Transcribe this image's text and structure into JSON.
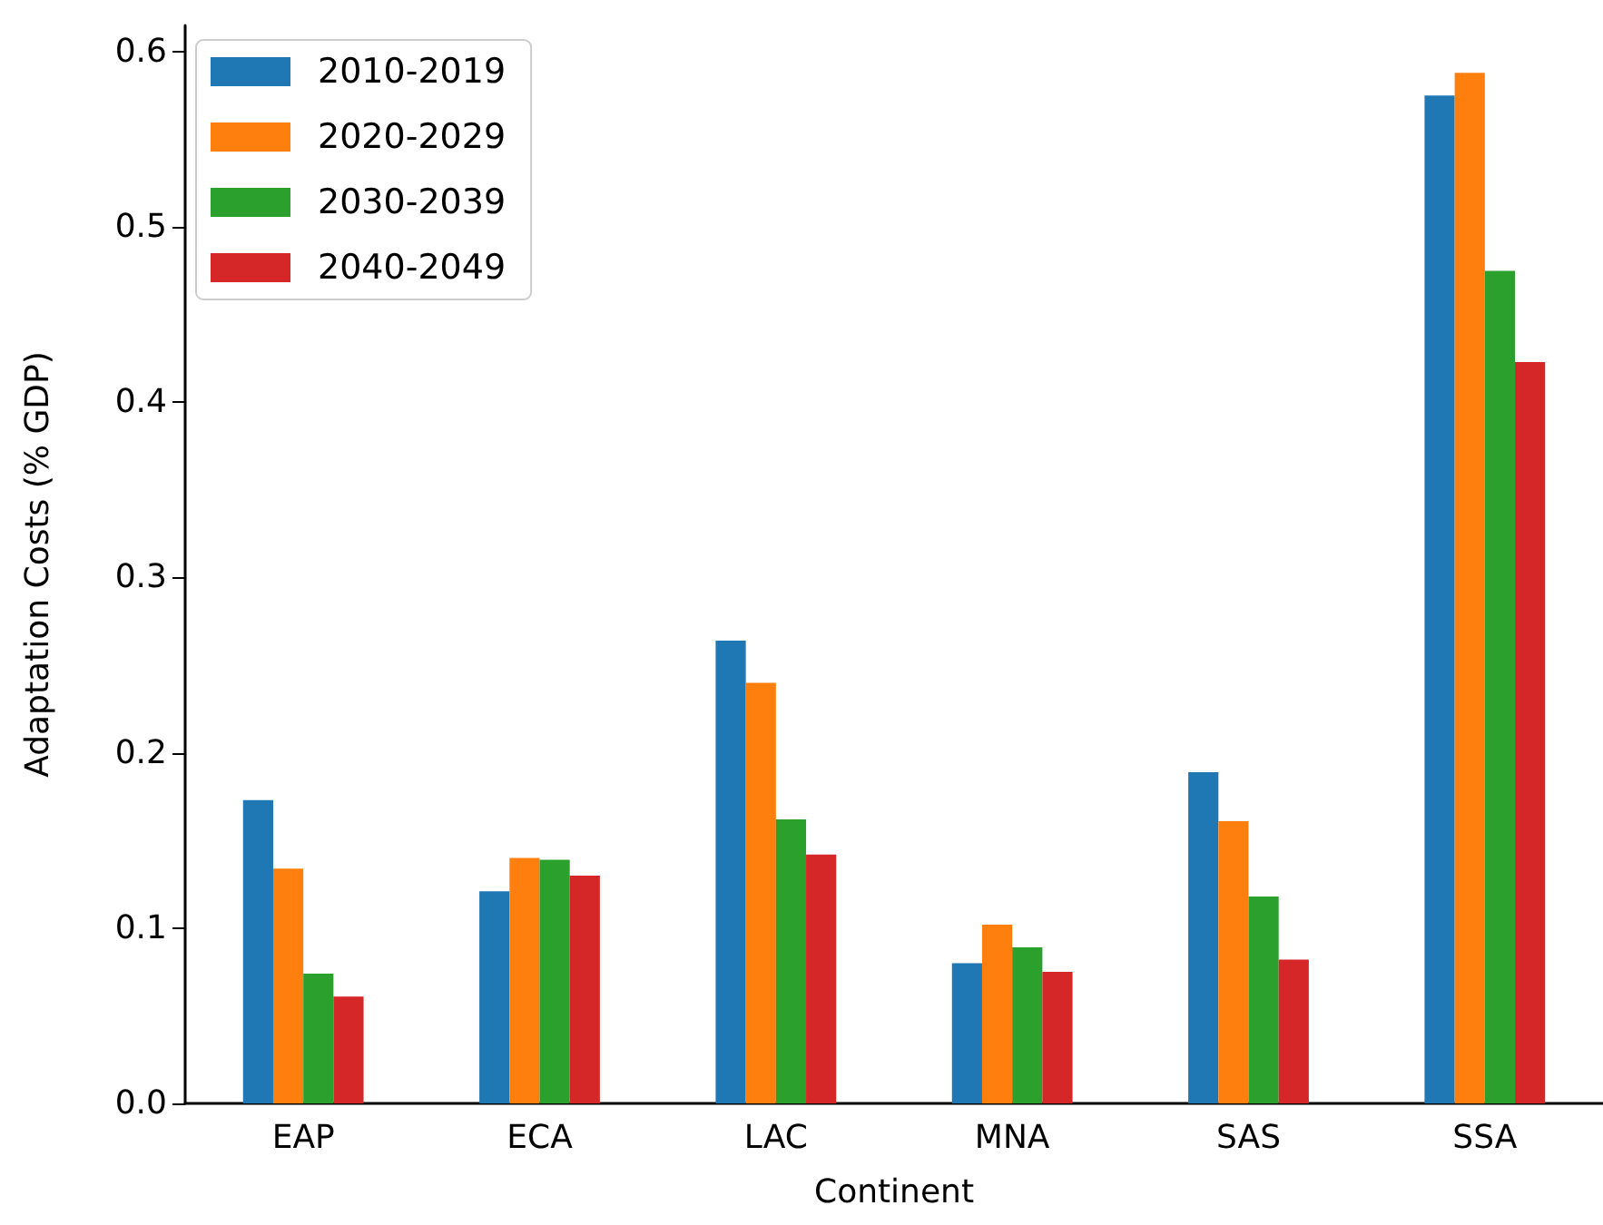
{
  "chart_data": {
    "type": "bar",
    "xlabel": "Continent",
    "ylabel": "Adaptation Costs (% GDP)",
    "categories": [
      "EAP",
      "ECA",
      "LAC",
      "MNA",
      "SAS",
      "SSA"
    ],
    "series": [
      {
        "name": "2010-2019",
        "color": "#1f77b4",
        "values": [
          0.173,
          0.121,
          0.264,
          0.08,
          0.189,
          0.575
        ]
      },
      {
        "name": "2020-2029",
        "color": "#ff7f0e",
        "values": [
          0.134,
          0.14,
          0.24,
          0.102,
          0.161,
          0.588
        ]
      },
      {
        "name": "2030-2039",
        "color": "#2ca02c",
        "values": [
          0.074,
          0.139,
          0.162,
          0.089,
          0.118,
          0.475
        ]
      },
      {
        "name": "2040-2049",
        "color": "#d62728",
        "values": [
          0.061,
          0.13,
          0.142,
          0.075,
          0.082,
          0.423
        ]
      }
    ],
    "ylim": [
      0,
      0.615
    ],
    "yticks": [
      {
        "value": 0,
        "label": "0.0"
      },
      {
        "value": 0.1,
        "label": "0.1"
      },
      {
        "value": 0.2,
        "label": "0.2"
      },
      {
        "value": 0.3,
        "label": "0.3"
      },
      {
        "value": 0.4,
        "label": "0.4"
      },
      {
        "value": 0.5,
        "label": "0.5"
      },
      {
        "value": 0.6,
        "label": "0.6"
      }
    ],
    "grid": false,
    "legend": "top left"
  }
}
